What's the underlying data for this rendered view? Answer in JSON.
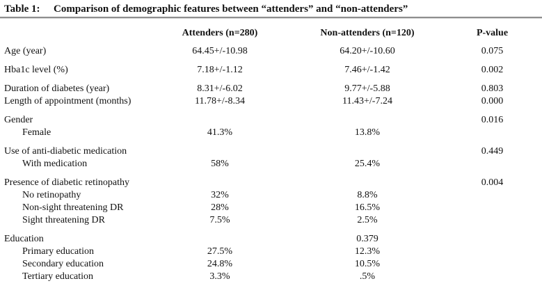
{
  "title": {
    "label": "Table 1:",
    "text": "Comparison of demographic features between “attenders” and “non-attenders”"
  },
  "columns": {
    "attenders": "Attenders (n=280)",
    "non_attenders": "Non-attenders (n=120)",
    "p_value": "P-value"
  },
  "colors": {
    "text": "#111111",
    "rule": "#8e8e8e",
    "background": "#ffffff"
  },
  "table": {
    "groups": [
      {
        "rows": [
          {
            "label": "Age (year)",
            "indent": false,
            "attenders": "64.45+/-10.98",
            "non_attenders": "64.20+/-10.60",
            "p_value": "0.075"
          }
        ]
      },
      {
        "rows": [
          {
            "label": "Hba1c level (%)",
            "indent": false,
            "attenders": "7.18+/-1.12",
            "non_attenders": "7.46+/-1.42",
            "p_value": "0.002"
          }
        ]
      },
      {
        "rows": [
          {
            "label": "Duration of diabetes (year)",
            "indent": false,
            "attenders": "8.31+/-6.02",
            "non_attenders": "9.77+/-5.88",
            "p_value": "0.803"
          },
          {
            "label": "Length of appointment (months)",
            "indent": false,
            "attenders": "11.78+/-8.34",
            "non_attenders": "11.43+/-7.24",
            "p_value": "0.000"
          }
        ]
      },
      {
        "rows": [
          {
            "label": "Gender",
            "indent": false,
            "attenders": "",
            "non_attenders": "",
            "p_value": "0.016"
          },
          {
            "label": "Female",
            "indent": true,
            "attenders": "41.3%",
            "non_attenders": "13.8%",
            "p_value": ""
          }
        ]
      },
      {
        "rows": [
          {
            "label": "Use of anti-diabetic medication",
            "indent": false,
            "attenders": "",
            "non_attenders": "",
            "p_value": "0.449"
          },
          {
            "label": "With medication",
            "indent": true,
            "attenders": "58%",
            "non_attenders": "25.4%",
            "p_value": ""
          }
        ]
      },
      {
        "rows": [
          {
            "label": "Presence of diabetic retinopathy",
            "indent": false,
            "attenders": "",
            "non_attenders": "",
            "p_value": "0.004"
          },
          {
            "label": "No retinopathy",
            "indent": true,
            "attenders": "32%",
            "non_attenders": "8.8%",
            "p_value": ""
          },
          {
            "label": "Non-sight threatening DR",
            "indent": true,
            "attenders": "28%",
            "non_attenders": "16.5%",
            "p_value": ""
          },
          {
            "label": "Sight threatening DR",
            "indent": true,
            "attenders": "7.5%",
            "non_attenders": "2.5%",
            "p_value": ""
          }
        ]
      },
      {
        "rows": [
          {
            "label": "Education",
            "indent": false,
            "attenders": "",
            "non_attenders": "0.379",
            "p_value": ""
          },
          {
            "label": "Primary education",
            "indent": true,
            "attenders": "27.5%",
            "non_attenders": "12.3%",
            "p_value": ""
          },
          {
            "label": "Secondary education",
            "indent": true,
            "attenders": "24.8%",
            "non_attenders": "10.5%",
            "p_value": ""
          },
          {
            "label": "Tertiary education",
            "indent": true,
            "attenders": "3.3%",
            "non_attenders": ".5%",
            "p_value": ""
          }
        ]
      }
    ]
  }
}
